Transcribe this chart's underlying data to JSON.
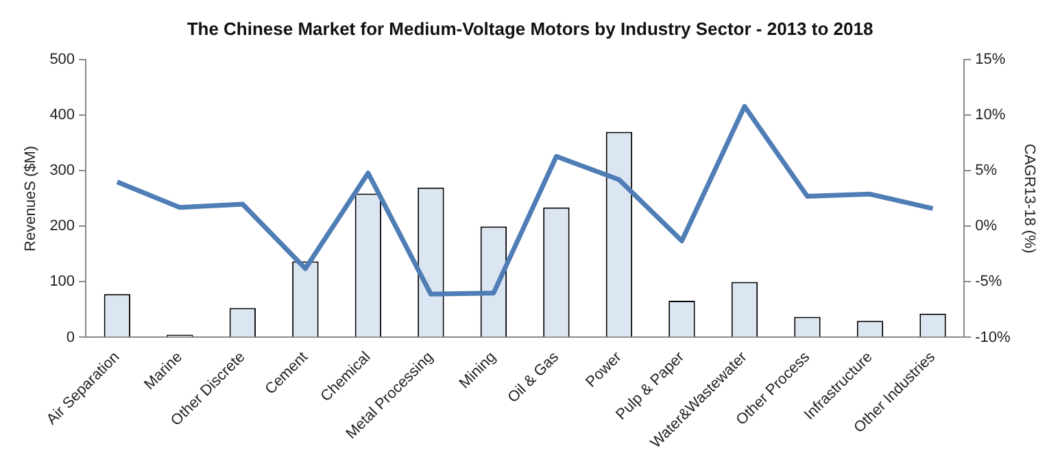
{
  "chart_data": {
    "type": "bar",
    "title": "The Chinese Market for Medium-Voltage Motors by Industry Sector - 2013 to 2018",
    "ylabel": "RevenueS ($M)",
    "y2label": "CAGR13-18 (%)",
    "categories": [
      "Air Separation",
      "Marine",
      "Other Discrete",
      "Cement",
      "Chemical",
      "Metal Processing",
      "Mining",
      "Oil & Gas",
      "Power",
      "Pulp & Paper",
      "Water&Wastewater",
      "Other Process",
      "Infrastructure",
      "Other Industries"
    ],
    "series": [
      {
        "color": "#dce6f2",
        "values": [
          78,
          5,
          53,
          137,
          259,
          270,
          200,
          234,
          370,
          66,
          100,
          37,
          30,
          43
        ]
      },
      {
        "type": "line",
        "axis": "y2",
        "color": "#4f7db5",
        "values": [
          4.0,
          1.7,
          2.0,
          -3.8,
          4.8,
          -6.1,
          -6.0,
          6.3,
          4.2,
          -1.3,
          10.8,
          2.7,
          2.9,
          1.6
        ]
      }
    ],
    "ylim": [
      0,
      500
    ],
    "yticks": [
      0,
      100,
      200,
      300,
      400,
      500
    ],
    "y2lim": [
      -10,
      15
    ],
    "y2ticks": [
      {
        "value": -10,
        "label": "-10%"
      },
      {
        "value": -5,
        "label": "-5%"
      },
      {
        "value": 0,
        "label": "0%"
      },
      {
        "value": 5,
        "label": "5%"
      },
      {
        "value": 10,
        "label": "10%"
      },
      {
        "value": 15,
        "label": "15%"
      }
    ],
    "grid": false,
    "legend": false,
    "marker": "none",
    "line_style": "solid"
  }
}
